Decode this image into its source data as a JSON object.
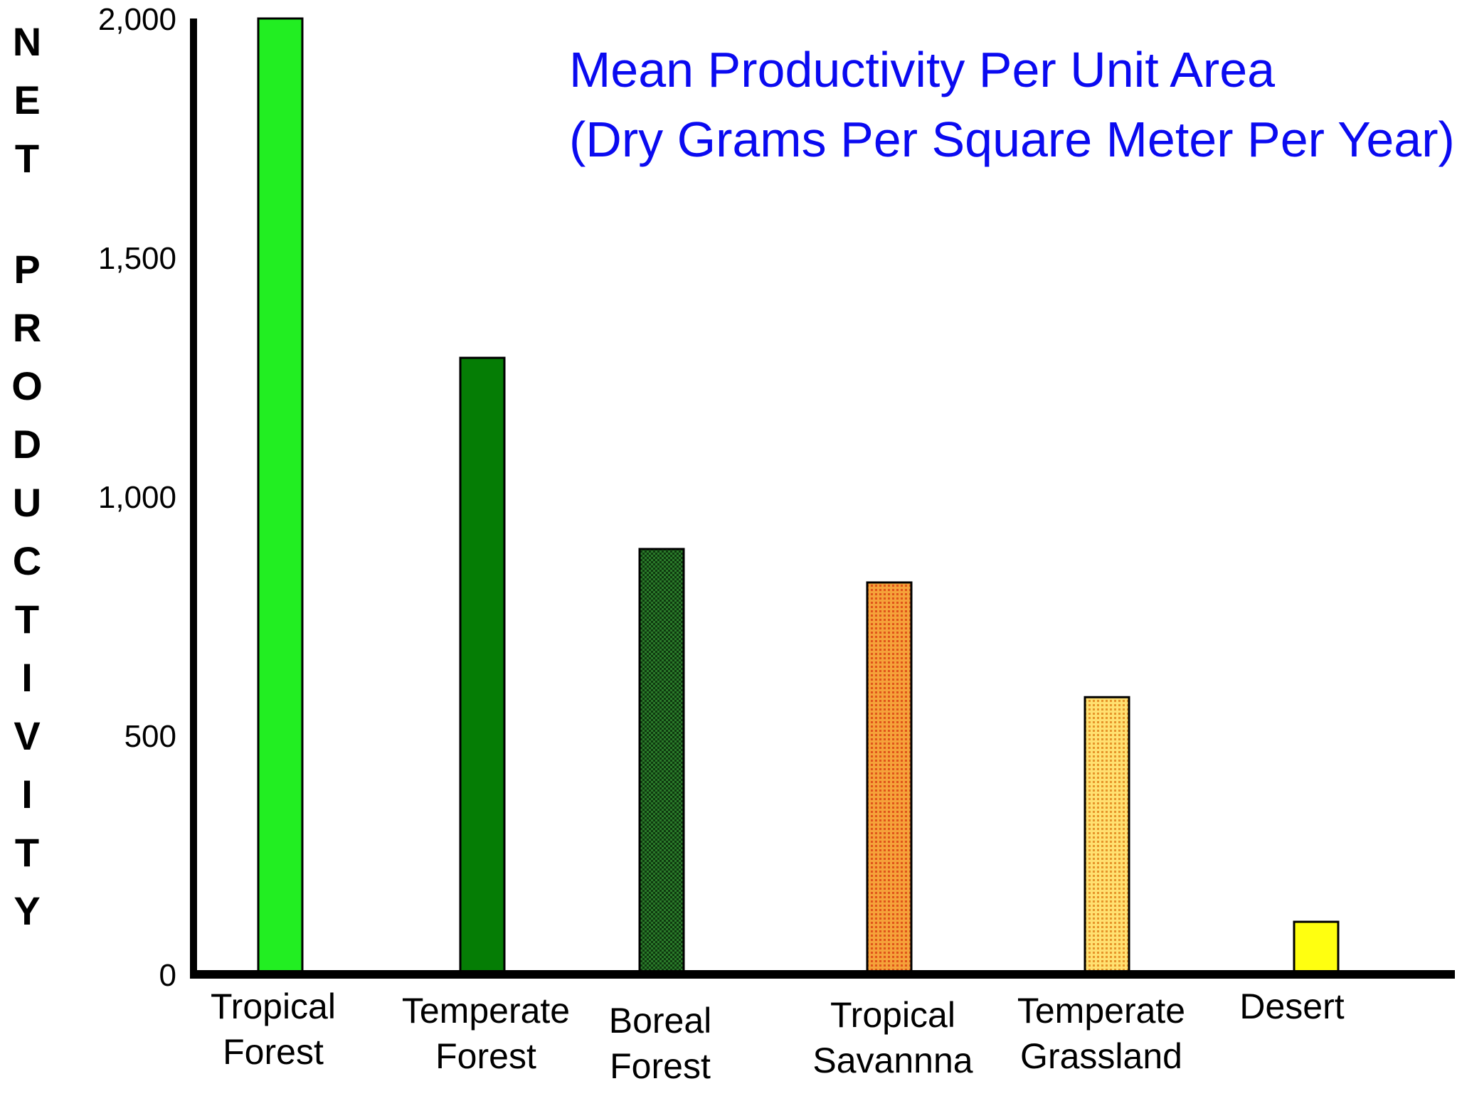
{
  "chart_data": {
    "type": "bar",
    "title_lines": [
      "Mean Productivity Per Unit Area",
      "(Dry Grams Per Square Meter Per Year)"
    ],
    "ylabel": "NET PRODUCTIVITY",
    "ylim": [
      0,
      2000
    ],
    "yticks": [
      {
        "value": 0,
        "label": "0"
      },
      {
        "value": 500,
        "label": "500"
      },
      {
        "value": 1000,
        "label": "1,000"
      },
      {
        "value": 1500,
        "label": "1,500"
      },
      {
        "value": 2000,
        "label": "2,000"
      }
    ],
    "categories": [
      {
        "lines": [
          "Tropical",
          "Forest"
        ],
        "value": 2000,
        "color": "#22ee22",
        "pattern": "solid"
      },
      {
        "lines": [
          "Temperate",
          "Forest"
        ],
        "value": 1290,
        "color": "#057d05",
        "pattern": "solid"
      },
      {
        "lines": [
          "Boreal",
          "Forest"
        ],
        "value": 890,
        "color": "#1d5a1d",
        "pattern": "check"
      },
      {
        "lines": [
          "Tropical",
          "Savannna"
        ],
        "value": 820,
        "color": "#f28a1c",
        "pattern": "dots"
      },
      {
        "lines": [
          "Temperate",
          "Grassland"
        ],
        "value": 580,
        "color": "#f5c040",
        "pattern": "dots"
      },
      {
        "lines": [
          "Desert"
        ],
        "value": 110,
        "color": "#ffff10",
        "pattern": "solid"
      }
    ],
    "title_color": "#0a0af0",
    "grid": false
  }
}
